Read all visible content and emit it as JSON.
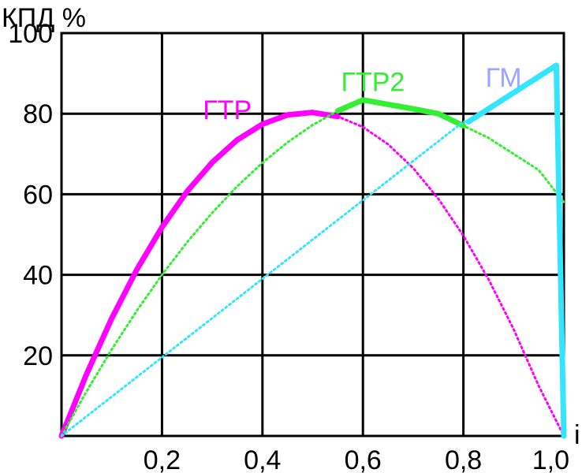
{
  "chart_data": {
    "type": "line",
    "ylabel": "КПД %",
    "xlabel": "i",
    "xlim": [
      0,
      1.0
    ],
    "ylim": [
      0,
      100
    ],
    "x_ticks": [
      {
        "value": 0.2,
        "label": "0,2"
      },
      {
        "value": 0.4,
        "label": "0,4"
      },
      {
        "value": 0.6,
        "label": "0,6"
      },
      {
        "value": 0.8,
        "label": "0,8"
      },
      {
        "value": 1.0,
        "label": "1,0"
      }
    ],
    "y_ticks": [
      {
        "value": 20,
        "label": "20"
      },
      {
        "value": 40,
        "label": "40"
      },
      {
        "value": 60,
        "label": "60"
      },
      {
        "value": 80,
        "label": "80"
      },
      {
        "value": 100,
        "label": "100"
      }
    ],
    "grid": true,
    "series": [
      {
        "name": "ГТР",
        "label_at": {
          "x": 0.33,
          "y": 81
        },
        "color": "#ff00ff",
        "style": "mixed",
        "x": [
          0,
          0.05,
          0.1,
          0.15,
          0.2,
          0.25,
          0.3,
          0.35,
          0.4,
          0.45,
          0.5,
          0.55,
          0.6,
          0.65,
          0.7,
          0.75,
          0.8,
          0.85,
          0.9,
          0.95,
          1.0
        ],
        "values": [
          0,
          15.4,
          29.2,
          41.3,
          51.8,
          60.7,
          67.9,
          73.5,
          77.4,
          79.7,
          80.3,
          79.3,
          76.7,
          72.4,
          66.5,
          58.9,
          49.7,
          38.9,
          26.5,
          12.4,
          0
        ],
        "solid_range": [
          0,
          0.55
        ]
      },
      {
        "name": "ГТР2",
        "label_at": {
          "x": 0.62,
          "y": 88
        },
        "color": "#33ee33",
        "style": "mixed",
        "x": [
          0,
          0.05,
          0.1,
          0.15,
          0.2,
          0.25,
          0.3,
          0.35,
          0.4,
          0.45,
          0.5,
          0.55,
          0.6,
          0.65,
          0.7,
          0.75,
          0.8,
          0.85,
          0.9,
          0.95,
          1.0
        ],
        "values": [
          0,
          11.1,
          21.5,
          31.1,
          40.0,
          48.1,
          55.4,
          62.0,
          67.8,
          72.9,
          77.2,
          80.7,
          83.4,
          82.3,
          81.2,
          80.0,
          77.0,
          74.0,
          70.0,
          66.0,
          58.0
        ],
        "solid_range": [
          0.55,
          0.81
        ]
      },
      {
        "name": "ГМ",
        "label_at": {
          "x": 0.88,
          "y": 89
        },
        "color": "#33e5ff",
        "style": "mixed",
        "x": [
          0,
          0.8,
          0.81,
          0.985,
          1.0
        ],
        "values": [
          0,
          78,
          78,
          92,
          0
        ],
        "solid_range": [
          0.81,
          1.0
        ]
      }
    ]
  }
}
